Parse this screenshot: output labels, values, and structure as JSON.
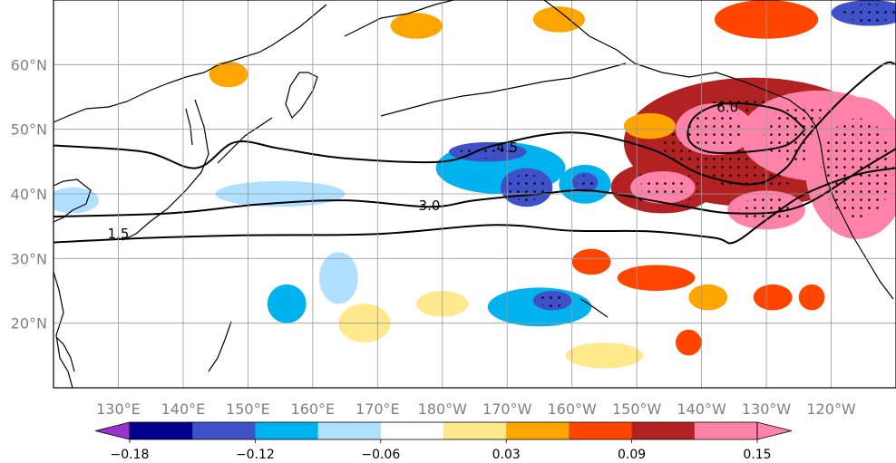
{
  "map": {
    "type": "heatmap",
    "projection": "PlateCarree",
    "lon_range_east": [
      120,
      250
    ],
    "lat_range": [
      10,
      70
    ],
    "x_ticks": [
      {
        "lon": 130,
        "label": "130°E"
      },
      {
        "lon": 140,
        "label": "140°E"
      },
      {
        "lon": 150,
        "label": "150°E"
      },
      {
        "lon": 160,
        "label": "160°E"
      },
      {
        "lon": 170,
        "label": "170°E"
      },
      {
        "lon": 180,
        "label": "180°W"
      },
      {
        "lon": 190,
        "label": "170°W"
      },
      {
        "lon": 200,
        "label": "160°W"
      },
      {
        "lon": 210,
        "label": "150°W"
      },
      {
        "lon": 220,
        "label": "140°W"
      },
      {
        "lon": 230,
        "label": "130°W"
      },
      {
        "lon": 240,
        "label": "120°W"
      }
    ],
    "y_ticks": [
      {
        "lat": 20,
        "label": "20°N"
      },
      {
        "lat": 30,
        "label": "30°N"
      },
      {
        "lat": 40,
        "label": "40°N"
      },
      {
        "lat": 50,
        "label": "50°N"
      },
      {
        "lat": 60,
        "label": "60°N"
      }
    ],
    "grid": true,
    "stippling": "significant regions",
    "contour_lines": [
      {
        "label": "1.5",
        "points": [
          [
            120,
            32.5
          ],
          [
            135,
            33.2
          ],
          [
            150,
            33.6
          ],
          [
            170,
            33.8
          ],
          [
            188,
            35.2
          ],
          [
            200,
            34.3
          ],
          [
            212,
            34.2
          ],
          [
            222,
            33.2
          ],
          [
            225,
            32.5
          ],
          [
            230,
            36
          ],
          [
            236,
            40
          ],
          [
            244,
            43
          ],
          [
            250,
            44
          ]
        ]
      },
      {
        "label": "3.0",
        "points": [
          [
            120,
            36.5
          ],
          [
            138,
            37
          ],
          [
            152,
            38.4
          ],
          [
            165,
            39
          ],
          [
            178,
            38
          ],
          [
            185,
            39
          ],
          [
            195,
            40
          ],
          [
            203,
            40.5
          ],
          [
            215,
            38.5
          ],
          [
            225,
            37
          ],
          [
            235,
            38
          ],
          [
            245,
            44
          ],
          [
            250,
            47
          ]
        ]
      },
      {
        "label": "4.5",
        "points": [
          [
            120,
            47.5
          ],
          [
            134,
            46.5
          ],
          [
            142,
            44
          ],
          [
            148,
            48
          ],
          [
            155,
            47
          ],
          [
            165,
            45.5
          ],
          [
            180,
            45
          ],
          [
            188,
            47.5
          ],
          [
            200,
            49.5
          ],
          [
            212,
            47
          ],
          [
            220,
            43
          ],
          [
            228,
            41.5
          ],
          [
            233,
            44
          ],
          [
            236,
            48.5
          ],
          [
            242,
            55
          ],
          [
            248,
            60
          ],
          [
            250,
            60
          ]
        ]
      },
      {
        "label": "6.0",
        "points": [
          [
            236,
            50
          ],
          [
            232,
            53
          ],
          [
            224,
            54
          ],
          [
            219,
            52
          ],
          [
            218,
            48.5
          ],
          [
            221,
            46.5
          ],
          [
            227,
            46.5
          ],
          [
            233,
            47.5
          ],
          [
            236,
            50
          ]
        ]
      }
    ],
    "anomaly_patches": [
      {
        "lon": 228,
        "lat": 48,
        "rx": 20,
        "ry": 10,
        "level": 0.12
      },
      {
        "lon": 238,
        "lat": 49,
        "rx": 12,
        "ry": 7,
        "level": 0.15
      },
      {
        "lon": 244,
        "lat": 44,
        "rx": 8,
        "ry": 11,
        "level": 0.15
      },
      {
        "lon": 222,
        "lat": 50,
        "rx": 6,
        "ry": 4,
        "level": 0.15
      },
      {
        "lon": 214,
        "lat": 41,
        "rx": 8,
        "ry": 4,
        "level": 0.12
      },
      {
        "lon": 214,
        "lat": 41,
        "rx": 5,
        "ry": 2.5,
        "level": 0.15
      },
      {
        "lon": 230,
        "lat": 37.5,
        "rx": 6,
        "ry": 3,
        "level": 0.15
      },
      {
        "lon": 189,
        "lat": 44,
        "rx": 10,
        "ry": 4,
        "level": -0.09
      },
      {
        "lon": 187,
        "lat": 46.5,
        "rx": 6,
        "ry": 1.5,
        "level": -0.12
      },
      {
        "lon": 193,
        "lat": 41,
        "rx": 4,
        "ry": 3,
        "level": -0.12
      },
      {
        "lon": 202,
        "lat": 41.5,
        "rx": 4,
        "ry": 3,
        "level": -0.09
      },
      {
        "lon": 202,
        "lat": 41.8,
        "rx": 2,
        "ry": 1.5,
        "level": -0.12
      },
      {
        "lon": 195,
        "lat": 22.5,
        "rx": 8,
        "ry": 3,
        "level": -0.09
      },
      {
        "lon": 197,
        "lat": 23.5,
        "rx": 3,
        "ry": 1.5,
        "level": -0.12
      },
      {
        "lon": 213,
        "lat": 27,
        "rx": 6,
        "ry": 2,
        "level": 0.09
      },
      {
        "lon": 203,
        "lat": 29.5,
        "rx": 3,
        "ry": 2,
        "level": 0.09
      },
      {
        "lon": 221,
        "lat": 24,
        "rx": 3,
        "ry": 2,
        "level": 0.06
      },
      {
        "lon": 231,
        "lat": 24,
        "rx": 3,
        "ry": 2,
        "level": 0.09
      },
      {
        "lon": 237,
        "lat": 24,
        "rx": 2,
        "ry": 2,
        "level": 0.09
      },
      {
        "lon": 218,
        "lat": 17,
        "rx": 2,
        "ry": 2,
        "level": 0.09
      },
      {
        "lon": 212,
        "lat": 50.5,
        "rx": 4,
        "ry": 2,
        "level": 0.06
      },
      {
        "lon": 230,
        "lat": 67,
        "rx": 8,
        "ry": 3,
        "level": 0.09
      },
      {
        "lon": 246,
        "lat": 68,
        "rx": 6,
        "ry": 2,
        "level": -0.12
      },
      {
        "lon": 164,
        "lat": 27,
        "rx": 3,
        "ry": 4,
        "level": -0.06
      },
      {
        "lon": 156,
        "lat": 23,
        "rx": 3,
        "ry": 3,
        "level": -0.09
      },
      {
        "lon": 123,
        "lat": 39,
        "rx": 4,
        "ry": 2,
        "level": -0.06
      },
      {
        "lon": 147,
        "lat": 58.5,
        "rx": 3,
        "ry": 2,
        "level": 0.06
      },
      {
        "lon": 176,
        "lat": 66,
        "rx": 4,
        "ry": 2,
        "level": 0.06
      },
      {
        "lon": 198,
        "lat": 67,
        "rx": 4,
        "ry": 2,
        "level": 0.06
      },
      {
        "lon": 168,
        "lat": 20,
        "rx": 4,
        "ry": 3,
        "level": 0.03
      },
      {
        "lon": 180,
        "lat": 23,
        "rx": 4,
        "ry": 2,
        "level": 0.03
      },
      {
        "lon": 205,
        "lat": 15,
        "rx": 6,
        "ry": 2,
        "level": 0.03
      },
      {
        "lon": 155,
        "lat": 40,
        "rx": 10,
        "ry": 2,
        "level": -0.06
      }
    ],
    "colorbar": {
      "levels": [
        -0.18,
        -0.15,
        -0.12,
        -0.09,
        -0.06,
        -0.03,
        0.03,
        0.06,
        0.09,
        0.12,
        0.15
      ],
      "colors": [
        "#9932cc",
        "#00008b",
        "#3f51c8",
        "#00b2ee",
        "#b0e0ff",
        "#ffffff",
        "#ffe98c",
        "#ffa500",
        "#ff4500",
        "#b22222",
        "#ff82ab"
      ],
      "over_color": "#ff82ab",
      "under_color": "#9932cc",
      "extend": "both",
      "tick_labels": [
        {
          "value": -0.18,
          "label": "−0.18"
        },
        {
          "value": -0.12,
          "label": "−0.12"
        },
        {
          "value": -0.06,
          "label": "−0.06"
        },
        {
          "value": 0.03,
          "label": "0.03"
        },
        {
          "value": 0.09,
          "label": "0.09"
        },
        {
          "value": 0.15,
          "label": "0.15"
        }
      ]
    }
  }
}
